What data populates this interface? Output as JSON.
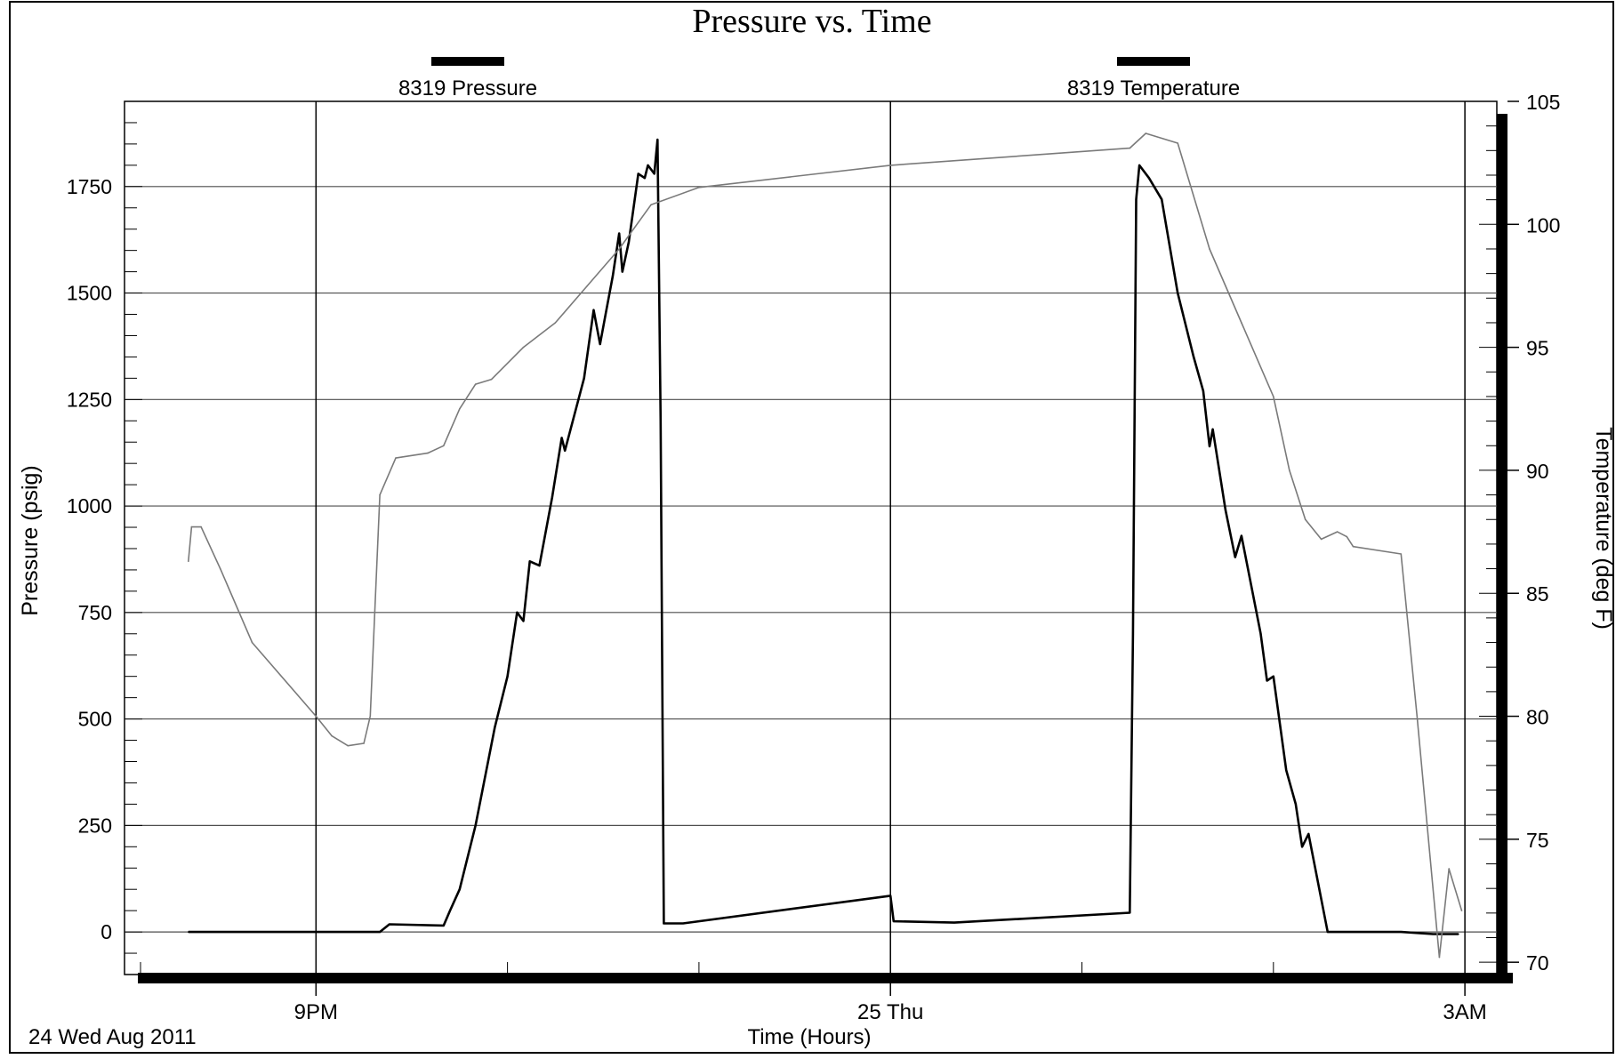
{
  "chart_data": {
    "type": "line",
    "title": "Pressure vs. Time",
    "xlabel": "Time (Hours)",
    "ylabel_left": "Pressure (psig)",
    "ylabel_right": "Temperature (deg F)",
    "date_caption": "24 Wed Aug 2011",
    "x_axis": {
      "unit": "hours",
      "range": [
        "2011-08-24 20:00",
        "2011-08-25 03:10"
      ],
      "major_ticks": [
        {
          "time": "2011-08-24 21:00",
          "label": "9PM"
        },
        {
          "time": "2011-08-25 00:00",
          "label": "25 Thu"
        },
        {
          "time": "2011-08-25 03:00",
          "label": "3AM"
        }
      ],
      "minor_ticks": [
        "2011-08-24 22:00",
        "2011-08-24 23:00",
        "2011-08-25 01:00",
        "2011-08-25 02:00"
      ]
    },
    "y_left": {
      "range": [
        -100,
        1950
      ],
      "ticks": [
        0,
        250,
        500,
        750,
        1000,
        1250,
        1500,
        1750
      ],
      "minor_step": 50
    },
    "y_right": {
      "range": [
        69.5,
        105
      ],
      "ticks": [
        70,
        75,
        80,
        85,
        90,
        95,
        100,
        105
      ],
      "minor_step": 1
    },
    "grid": true,
    "legend_position": "top",
    "series": [
      {
        "name": "8319 Pressure",
        "axis": "left",
        "color": "#000000",
        "points": [
          [
            "2011-08-24 20:20",
            0
          ],
          [
            "2011-08-24 21:00",
            0
          ],
          [
            "2011-08-24 21:20",
            0
          ],
          [
            "2011-08-24 21:23",
            18
          ],
          [
            "2011-08-24 21:40",
            15
          ],
          [
            "2011-08-24 21:42",
            50
          ],
          [
            "2011-08-24 21:45",
            100
          ],
          [
            "2011-08-24 21:50",
            250
          ],
          [
            "2011-08-24 21:56",
            480
          ],
          [
            "2011-08-24 22:00",
            600
          ],
          [
            "2011-08-24 22:03",
            750
          ],
          [
            "2011-08-24 22:05",
            730
          ],
          [
            "2011-08-24 22:07",
            870
          ],
          [
            "2011-08-24 22:10",
            860
          ],
          [
            "2011-08-24 22:14",
            1020
          ],
          [
            "2011-08-24 22:17",
            1160
          ],
          [
            "2011-08-24 22:18",
            1130
          ],
          [
            "2011-08-24 22:24",
            1300
          ],
          [
            "2011-08-24 22:27",
            1460
          ],
          [
            "2011-08-24 22:29",
            1380
          ],
          [
            "2011-08-24 22:31",
            1460
          ],
          [
            "2011-08-24 22:33",
            1540
          ],
          [
            "2011-08-24 22:35",
            1640
          ],
          [
            "2011-08-24 22:36",
            1550
          ],
          [
            "2011-08-24 22:38",
            1620
          ],
          [
            "2011-08-24 22:41",
            1780
          ],
          [
            "2011-08-24 22:43",
            1770
          ],
          [
            "2011-08-24 22:44",
            1800
          ],
          [
            "2011-08-24 22:46",
            1780
          ],
          [
            "2011-08-24 22:47",
            1860
          ],
          [
            "2011-08-24 22:48",
            1200
          ],
          [
            "2011-08-24 22:49",
            20
          ],
          [
            "2011-08-24 22:55",
            20
          ],
          [
            "2011-08-25 00:00",
            85
          ],
          [
            "2011-08-25 00:01",
            25
          ],
          [
            "2011-08-25 00:20",
            22
          ],
          [
            "2011-08-25 01:15",
            45
          ],
          [
            "2011-08-25 01:16",
            700
          ],
          [
            "2011-08-25 01:17",
            1720
          ],
          [
            "2011-08-25 01:18",
            1800
          ],
          [
            "2011-08-25 01:21",
            1770
          ],
          [
            "2011-08-25 01:25",
            1720
          ],
          [
            "2011-08-25 01:30",
            1500
          ],
          [
            "2011-08-25 01:35",
            1350
          ],
          [
            "2011-08-25 01:38",
            1270
          ],
          [
            "2011-08-25 01:40",
            1140
          ],
          [
            "2011-08-25 01:41",
            1180
          ],
          [
            "2011-08-25 01:45",
            990
          ],
          [
            "2011-08-25 01:48",
            880
          ],
          [
            "2011-08-25 01:50",
            930
          ],
          [
            "2011-08-25 01:56",
            700
          ],
          [
            "2011-08-25 01:58",
            590
          ],
          [
            "2011-08-25 02:00",
            600
          ],
          [
            "2011-08-25 02:04",
            380
          ],
          [
            "2011-08-25 02:07",
            300
          ],
          [
            "2011-08-25 02:09",
            200
          ],
          [
            "2011-08-25 02:11",
            230
          ],
          [
            "2011-08-25 02:17",
            0
          ],
          [
            "2011-08-25 02:40",
            0
          ],
          [
            "2011-08-25 02:50",
            -5
          ],
          [
            "2011-08-25 02:58",
            -5
          ]
        ]
      },
      {
        "name": "8319 Temperature",
        "axis": "right",
        "color": "#7a7a7a",
        "points": [
          [
            "2011-08-24 20:20",
            86.3
          ],
          [
            "2011-08-24 20:21",
            87.7
          ],
          [
            "2011-08-24 20:24",
            87.7
          ],
          [
            "2011-08-24 20:30",
            86.0
          ],
          [
            "2011-08-24 20:40",
            83.0
          ],
          [
            "2011-08-24 21:00",
            80.0
          ],
          [
            "2011-08-24 21:05",
            79.2
          ],
          [
            "2011-08-24 21:10",
            78.8
          ],
          [
            "2011-08-24 21:15",
            78.9
          ],
          [
            "2011-08-24 21:17",
            80.0
          ],
          [
            "2011-08-24 21:20",
            89.0
          ],
          [
            "2011-08-24 21:25",
            90.5
          ],
          [
            "2011-08-24 21:35",
            90.7
          ],
          [
            "2011-08-24 21:40",
            91.0
          ],
          [
            "2011-08-24 21:45",
            92.5
          ],
          [
            "2011-08-24 21:50",
            93.5
          ],
          [
            "2011-08-24 21:55",
            93.7
          ],
          [
            "2011-08-24 22:05",
            95.0
          ],
          [
            "2011-08-24 22:15",
            96.0
          ],
          [
            "2011-08-24 22:25",
            97.5
          ],
          [
            "2011-08-24 22:35",
            99.0
          ],
          [
            "2011-08-24 22:45",
            100.8
          ],
          [
            "2011-08-24 23:00",
            101.5
          ],
          [
            "2011-08-25 00:00",
            102.4
          ],
          [
            "2011-08-25 01:15",
            103.1
          ],
          [
            "2011-08-25 01:20",
            103.7
          ],
          [
            "2011-08-25 01:30",
            103.3
          ],
          [
            "2011-08-25 01:40",
            99.0
          ],
          [
            "2011-08-25 01:50",
            96.0
          ],
          [
            "2011-08-25 02:00",
            93.0
          ],
          [
            "2011-08-25 02:05",
            90.0
          ],
          [
            "2011-08-25 02:10",
            88.0
          ],
          [
            "2011-08-25 02:15",
            87.2
          ],
          [
            "2011-08-25 02:20",
            87.5
          ],
          [
            "2011-08-25 02:23",
            87.3
          ],
          [
            "2011-08-25 02:25",
            86.9
          ],
          [
            "2011-08-25 02:40",
            86.6
          ],
          [
            "2011-08-25 02:45",
            80.0
          ],
          [
            "2011-08-25 02:52",
            70.2
          ],
          [
            "2011-08-25 02:55",
            73.8
          ],
          [
            "2011-08-25 02:59",
            72.1
          ]
        ]
      }
    ]
  },
  "style": {
    "background": "#ffffff",
    "foreground": "#000000",
    "gridline_color": "#4d4d4d",
    "temperature_line_color": "#7a7a7a"
  }
}
